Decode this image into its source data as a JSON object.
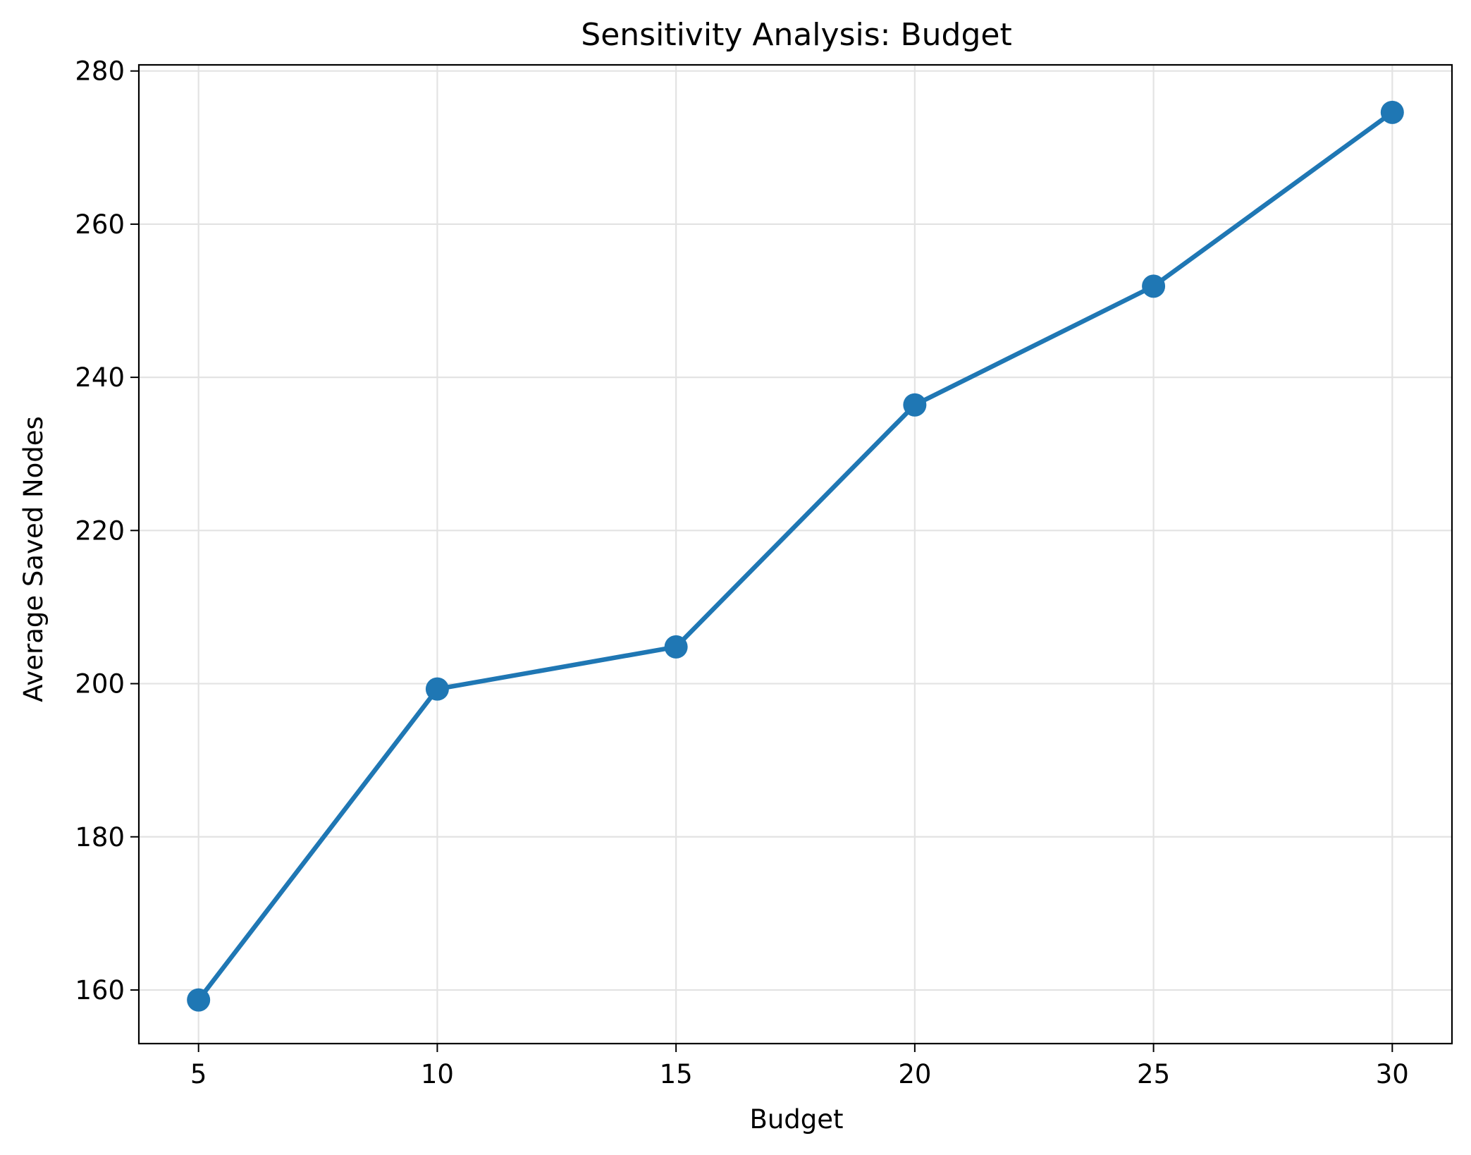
{
  "chart_data": {
    "type": "line",
    "title": "Sensitivity Analysis: Budget",
    "xlabel": "Budget",
    "ylabel": "Average Saved Nodes",
    "x": [
      5,
      10,
      15,
      20,
      25,
      30
    ],
    "series": [
      {
        "values": [
          158.7,
          199.3,
          204.8,
          236.4,
          251.9,
          274.6
        ]
      }
    ],
    "xlim": [
      3.75,
      31.25
    ],
    "ylim": [
      153,
      280.8
    ],
    "xticks": [
      5,
      10,
      15,
      20,
      25,
      30
    ],
    "xtick_labels": [
      "5",
      "10",
      "15",
      "20",
      "25",
      "30"
    ],
    "yticks": [
      160,
      180,
      200,
      220,
      240,
      260,
      280
    ],
    "ytick_labels": [
      "160",
      "180",
      "200",
      "220",
      "240",
      "260",
      "280"
    ],
    "grid": true,
    "marker": "circle",
    "colors": {
      "line": "#1f77b4",
      "grid": "#e3e3e3",
      "axes": "#000000"
    }
  }
}
